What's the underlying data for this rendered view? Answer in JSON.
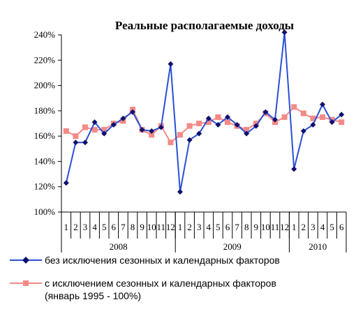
{
  "chart_data": {
    "type": "line",
    "title": "Реальные располагаемые  доходы",
    "ylim": [
      100,
      240
    ],
    "yticks": [
      "100%",
      "120%",
      "140%",
      "160%",
      "180%",
      "200%",
      "220%",
      "240%"
    ],
    "ytick_values": [
      100,
      120,
      140,
      160,
      180,
      200,
      220,
      240
    ],
    "categories": [
      "1",
      "2",
      "3",
      "4",
      "5",
      "6",
      "7",
      "8",
      "9",
      "10",
      "11",
      "12",
      "1",
      "2",
      "3",
      "4",
      "5",
      "6",
      "7",
      "8",
      "9",
      "10",
      "11",
      "12",
      "1",
      "2",
      "3",
      "4",
      "5",
      "6"
    ],
    "years": [
      {
        "label": "2008",
        "count": 12
      },
      {
        "label": "2009",
        "count": 12
      },
      {
        "label": "2010",
        "count": 6
      }
    ],
    "grid": false,
    "legend_position": "bottom",
    "series": [
      {
        "name": "без исключения сезонных и календарных факторов",
        "color": "#2a4fd6",
        "marker": "diamond",
        "marker_color": "#10106e",
        "values": [
          123,
          155,
          155,
          171,
          162,
          169,
          174,
          179,
          165,
          164,
          167,
          217,
          116,
          157,
          162,
          174,
          169,
          175,
          169,
          162,
          168,
          179,
          173,
          242,
          134,
          164,
          169,
          185,
          171,
          177
        ]
      },
      {
        "name": "с исключением сезонных и календарных факторов",
        "name_line2": "(январь 1995 - 100%)",
        "color": "#f48a86",
        "marker": "square",
        "marker_color": "#f48a86",
        "values": [
          164,
          160,
          167,
          165,
          165,
          170,
          172,
          181,
          165,
          161,
          168,
          155,
          161,
          168,
          170,
          171,
          175,
          171,
          168,
          165,
          170,
          178,
          171,
          175,
          183,
          178,
          174,
          175,
          173,
          171
        ]
      }
    ]
  }
}
